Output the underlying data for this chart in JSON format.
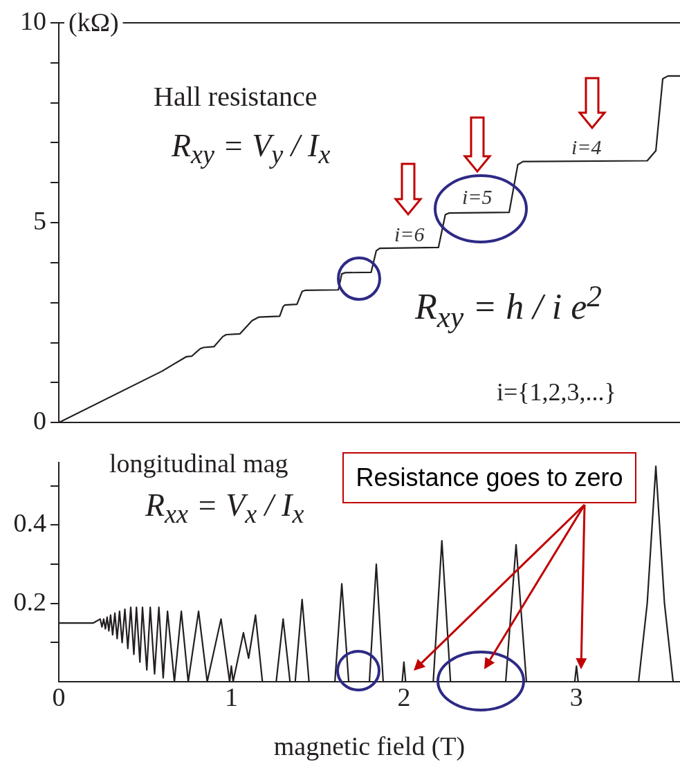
{
  "chart_data": [
    {
      "type": "line",
      "ylabel": "(kΩ)",
      "x": [
        0,
        0.6,
        0.72,
        0.74,
        0.77,
        0.82,
        0.84,
        0.9,
        0.95,
        0.97,
        1.05,
        1.12,
        1.16,
        1.28,
        1.3,
        1.31,
        1.38,
        1.41,
        1.43,
        1.62,
        1.64,
        1.66,
        1.81,
        1.84,
        1.86,
        2.2,
        2.24,
        2.26,
        2.61,
        2.66,
        2.69,
        3.41,
        3.46,
        3.5,
        3.53,
        3.6
      ],
      "series": [
        {
          "color": "#231f20",
          "values": [
            0,
            1.29,
            1.6,
            1.65,
            1.66,
            1.85,
            1.88,
            1.9,
            2.15,
            2.2,
            2.22,
            2.55,
            2.64,
            2.66,
            2.9,
            2.94,
            2.96,
            3.28,
            3.31,
            3.32,
            3.72,
            3.75,
            3.76,
            4.3,
            4.36,
            4.38,
            5.2,
            5.24,
            5.26,
            6.45,
            6.53,
            6.55,
            6.8,
            8.6,
            8.67,
            8.67
          ]
        }
      ],
      "xlim": [
        0,
        3.6
      ],
      "ylim": [
        0,
        10
      ],
      "xticks": [
        0,
        1,
        2,
        3
      ],
      "yticks": [
        0,
        {
          "value": 1,
          "label": null
        },
        {
          "value": 2,
          "label": null
        },
        {
          "value": 3,
          "label": null
        },
        {
          "value": 4,
          "label": null
        },
        5,
        {
          "value": 6,
          "label": null
        },
        {
          "value": 7,
          "label": null
        },
        {
          "value": 8,
          "label": null
        },
        {
          "value": 9,
          "label": null
        },
        10
      ],
      "tick_labels": "y",
      "annotations": [
        "Hall resistance",
        "R$_{xy}$ = V$_{y}$ / I$_{x}$",
        "i=6",
        "i=5",
        "i=4",
        "R$_{xy}$ = h / i e$^{2}$",
        "i={1,2,3,...}"
      ]
    },
    {
      "type": "line",
      "xlabel": "magnetic field (T)",
      "x": [
        0,
        0.2,
        0.24,
        0.25,
        0.26,
        0.27,
        0.28,
        0.29,
        0.3,
        0.312,
        0.325,
        0.338,
        0.352,
        0.367,
        0.383,
        0.4,
        0.417,
        0.435,
        0.45,
        0.47,
        0.485,
        0.51,
        0.53,
        0.555,
        0.58,
        0.605,
        0.63,
        0.67,
        0.71,
        0.75,
        0.81,
        0.86,
        0.94,
        0.99,
        1.0,
        1.01,
        1.07,
        1.1,
        1.14,
        1.18,
        1.26,
        1.3,
        1.34,
        1.37,
        1.41,
        1.45,
        1.6,
        1.64,
        1.68,
        1.8,
        1.84,
        1.88,
        1.99,
        2.0,
        2.01,
        2.17,
        2.22,
        2.27,
        2.59,
        2.65,
        2.71,
        2.99,
        3.0,
        3.01,
        3.36,
        3.41,
        3.46,
        3.51,
        3.56,
        3.6
      ],
      "series": [
        {
          "color": "#231f20",
          "values": [
            0.15,
            0.15,
            0.16,
            0.14,
            0.16,
            0.135,
            0.165,
            0.13,
            0.17,
            0.12,
            0.175,
            0.11,
            0.18,
            0.1,
            0.185,
            0.085,
            0.19,
            0.07,
            0.19,
            0.05,
            0.19,
            0.03,
            0.19,
            0.02,
            0.19,
            0.01,
            0.18,
            0,
            0.18,
            0,
            0.18,
            0,
            0.16,
            0,
            0.04,
            0,
            0.125,
            0.06,
            0.17,
            0,
            0,
            0.16,
            0,
            0,
            0.21,
            0,
            0,
            0.25,
            0,
            0,
            0.3,
            0,
            0,
            0.05,
            0,
            0,
            0.36,
            0,
            0,
            0.35,
            0,
            0,
            0.04,
            0,
            0,
            0.2,
            0.55,
            0.2,
            0,
            0
          ]
        }
      ],
      "xlim": [
        0,
        3.6
      ],
      "ylim": [
        0,
        0.56
      ],
      "xticks": [
        0,
        1,
        2,
        3
      ],
      "yticks": [
        {
          "value": 0.1,
          "label": null
        },
        0.2,
        {
          "value": 0.3,
          "label": null
        },
        0.4,
        {
          "value": 0.5,
          "label": null
        }
      ],
      "annotations": [
        "longitudinal mag",
        "R$_{xx}$ = V$_{x}$ / I$_{x}$",
        "Resistance goes to zero"
      ]
    }
  ]
}
